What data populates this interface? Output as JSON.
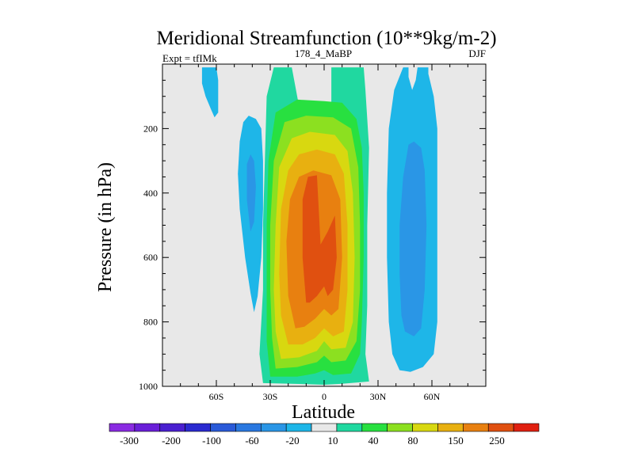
{
  "chart_data": {
    "type": "filled-contour",
    "title": "Meridional Streamfunction (10**9kg/m-2)",
    "left_subtitle": "Expt = tfIMk",
    "center_subtitle": "178_4_MaBP",
    "right_subtitle": "DJF",
    "xlabel": "Latitude",
    "ylabel": "Pressure (in hPa)",
    "xlim": [
      -90,
      90
    ],
    "ylim": [
      0,
      1000
    ],
    "y_inverted": true,
    "background_color": "#e8e8e8",
    "x_ticks": [
      {
        "value": -60,
        "label": "60S"
      },
      {
        "value": -30,
        "label": "30S"
      },
      {
        "value": 0,
        "label": "0"
      },
      {
        "value": 30,
        "label": "30N"
      },
      {
        "value": 60,
        "label": "60N"
      }
    ],
    "y_ticks": [
      {
        "value": 200,
        "label": "200"
      },
      {
        "value": 400,
        "label": "400"
      },
      {
        "value": 600,
        "label": "600"
      },
      {
        "value": 800,
        "label": "800"
      },
      {
        "value": 1000,
        "label": "1000"
      }
    ],
    "colorbar": {
      "colors": [
        "#8a2be2",
        "#6a1fd8",
        "#4a20d0",
        "#2a2ad0",
        "#2a5ad8",
        "#2a78e0",
        "#2a96e6",
        "#1eb6e8",
        "#e8e8e8",
        "#20d8a0",
        "#28e040",
        "#8ce020",
        "#d8d810",
        "#e8b010",
        "#e88010",
        "#e05010",
        "#e02010"
      ],
      "labels": [
        "-300",
        "-200",
        "-100",
        "-60",
        "-20",
        "10",
        "40",
        "80",
        "150",
        "250"
      ]
    },
    "contour_bands": [
      {
        "name": "north-south-cell-level-1",
        "value": 10,
        "color": "#20d8a0",
        "points": [
          [
            -34,
            990
          ],
          [
            -36,
            900
          ],
          [
            -35,
            800
          ],
          [
            -34,
            700
          ],
          [
            -34,
            500
          ],
          [
            -33,
            300
          ],
          [
            -32,
            100
          ],
          [
            -28,
            10
          ],
          [
            -18,
            10
          ],
          [
            -12,
            190
          ],
          [
            4,
            170
          ],
          [
            4,
            10
          ],
          [
            22,
            10
          ],
          [
            23,
            80
          ],
          [
            25,
            260
          ],
          [
            24,
            500
          ],
          [
            24,
            750
          ],
          [
            23,
            900
          ],
          [
            25,
            985
          ],
          [
            10,
            992
          ],
          [
            0,
            995
          ],
          [
            -10,
            993
          ]
        ]
      },
      {
        "name": "north-south-cell-level-2",
        "value": 40,
        "color": "#28e040",
        "points": [
          [
            -30,
            970
          ],
          [
            -32,
            860
          ],
          [
            -32,
            700
          ],
          [
            -32,
            500
          ],
          [
            -31,
            300
          ],
          [
            -27,
            150
          ],
          [
            -15,
            110
          ],
          [
            0,
            115
          ],
          [
            10,
            120
          ],
          [
            18,
            170
          ],
          [
            21,
            260
          ],
          [
            22,
            400
          ],
          [
            22,
            600
          ],
          [
            21,
            800
          ],
          [
            20,
            900
          ],
          [
            15,
            960
          ],
          [
            5,
            965
          ],
          [
            0,
            950
          ],
          [
            -5,
            960
          ],
          [
            -15,
            970
          ]
        ]
      },
      {
        "name": "north-south-cell-level-3",
        "value": 80,
        "color": "#8ce020",
        "points": [
          [
            -27,
            945
          ],
          [
            -29,
            850
          ],
          [
            -30,
            700
          ],
          [
            -30,
            500
          ],
          [
            -28,
            300
          ],
          [
            -22,
            180
          ],
          [
            -10,
            160
          ],
          [
            5,
            165
          ],
          [
            15,
            200
          ],
          [
            19,
            320
          ],
          [
            20,
            500
          ],
          [
            20,
            700
          ],
          [
            18,
            860
          ],
          [
            12,
            920
          ],
          [
            4,
            925
          ],
          [
            0,
            905
          ],
          [
            -4,
            925
          ],
          [
            -15,
            940
          ]
        ]
      },
      {
        "name": "north-south-cell-level-4",
        "value": 150,
        "color": "#d8d810",
        "points": [
          [
            -24,
            915
          ],
          [
            -27,
            830
          ],
          [
            -28,
            700
          ],
          [
            -27,
            500
          ],
          [
            -25,
            320
          ],
          [
            -18,
            230
          ],
          [
            -8,
            210
          ],
          [
            6,
            220
          ],
          [
            13,
            270
          ],
          [
            16,
            400
          ],
          [
            17,
            600
          ],
          [
            16,
            800
          ],
          [
            12,
            880
          ],
          [
            4,
            885
          ],
          [
            0,
            860
          ],
          [
            -4,
            890
          ],
          [
            -14,
            910
          ]
        ]
      },
      {
        "name": "north-south-cell-level-5",
        "value": 250,
        "color": "#e8b010",
        "points": [
          [
            -20,
            870
          ],
          [
            -24,
            780
          ],
          [
            -25,
            650
          ],
          [
            -24,
            450
          ],
          [
            -20,
            330
          ],
          [
            -14,
            280
          ],
          [
            -4,
            265
          ],
          [
            6,
            280
          ],
          [
            11,
            340
          ],
          [
            13,
            500
          ],
          [
            13,
            700
          ],
          [
            11,
            830
          ],
          [
            5,
            845
          ],
          [
            0,
            820
          ],
          [
            -5,
            850
          ],
          [
            -12,
            870
          ]
        ]
      },
      {
        "name": "north-south-cell-level-6",
        "value": 300,
        "color": "#e88010",
        "points": [
          [
            -16,
            820
          ],
          [
            -20,
            720
          ],
          [
            -21,
            550
          ],
          [
            -19,
            420
          ],
          [
            -14,
            350
          ],
          [
            -6,
            330
          ],
          [
            4,
            345
          ],
          [
            9,
            420
          ],
          [
            10,
            600
          ],
          [
            8,
            760
          ],
          [
            4,
            780
          ],
          [
            0,
            760
          ],
          [
            -5,
            790
          ],
          [
            -11,
            815
          ]
        ]
      },
      {
        "name": "north-south-cell-core",
        "value": 350,
        "color": "#e05010",
        "points": [
          [
            -10,
            740
          ],
          [
            -12,
            600
          ],
          [
            -12,
            420
          ],
          [
            -9,
            350
          ],
          [
            -4,
            345
          ],
          [
            -3,
            450
          ],
          [
            -2,
            560
          ],
          [
            2,
            520
          ],
          [
            6,
            470
          ],
          [
            7,
            600
          ],
          [
            5,
            700
          ],
          [
            2,
            720
          ],
          [
            0,
            690
          ],
          [
            -4,
            720
          ],
          [
            -8,
            740
          ]
        ]
      },
      {
        "name": "sh-upper-negative-cell",
        "value": -20,
        "color": "#1eb6e8",
        "points": [
          [
            -68,
            10
          ],
          [
            -68,
            60
          ],
          [
            -66,
            100
          ],
          [
            -63,
            140
          ],
          [
            -61,
            165
          ],
          [
            -59,
            150
          ],
          [
            -59,
            100
          ],
          [
            -59,
            50
          ],
          [
            -60,
            10
          ]
        ]
      },
      {
        "name": "sh-mid-negative-cell",
        "value": -20,
        "color": "#1eb6e8",
        "points": [
          [
            -47,
            240
          ],
          [
            -48,
            340
          ],
          [
            -47,
            450
          ],
          [
            -44,
            600
          ],
          [
            -41,
            710
          ],
          [
            -39,
            770
          ],
          [
            -37,
            720
          ],
          [
            -35,
            600
          ],
          [
            -34,
            450
          ],
          [
            -34,
            300
          ],
          [
            -35,
            200
          ],
          [
            -38,
            170
          ],
          [
            -42,
            160
          ],
          [
            -45,
            180
          ]
        ]
      },
      {
        "name": "sh-mid-negative-cell-inner",
        "value": -60,
        "color": "#2a96e6",
        "points": [
          [
            -43,
            310
          ],
          [
            -43,
            420
          ],
          [
            -41,
            520
          ],
          [
            -39,
            490
          ],
          [
            -38,
            380
          ],
          [
            -39,
            300
          ],
          [
            -41,
            280
          ]
        ]
      },
      {
        "name": "nh-negative-cell-outer",
        "value": -20,
        "color": "#1eb6e8",
        "points": [
          [
            44,
            10
          ],
          [
            39,
            80
          ],
          [
            36,
            200
          ],
          [
            35,
            400
          ],
          [
            35,
            600
          ],
          [
            36,
            800
          ],
          [
            38,
            900
          ],
          [
            42,
            950
          ],
          [
            48,
            955
          ],
          [
            55,
            940
          ],
          [
            61,
            900
          ],
          [
            63,
            800
          ],
          [
            63,
            500
          ],
          [
            63,
            200
          ],
          [
            61,
            100
          ],
          [
            58,
            30
          ],
          [
            58,
            10
          ],
          [
            52,
            10
          ],
          [
            51,
            50
          ],
          [
            49,
            80
          ],
          [
            47,
            40
          ],
          [
            47,
            10
          ]
        ]
      },
      {
        "name": "nh-negative-cell-inner",
        "value": -60,
        "color": "#2a96e6",
        "points": [
          [
            47,
            250
          ],
          [
            44,
            350
          ],
          [
            42,
            500
          ],
          [
            42,
            650
          ],
          [
            43,
            780
          ],
          [
            45,
            830
          ],
          [
            50,
            845
          ],
          [
            54,
            820
          ],
          [
            56,
            700
          ],
          [
            57,
            500
          ],
          [
            56,
            330
          ],
          [
            54,
            260
          ],
          [
            50,
            240
          ]
        ]
      }
    ]
  }
}
